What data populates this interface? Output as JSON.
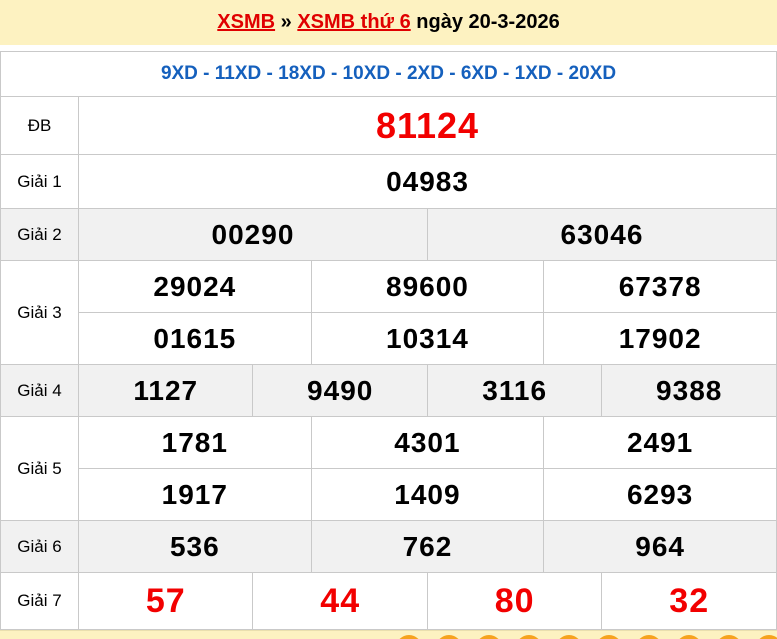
{
  "breadcrumb": {
    "link_xsmb": "XSMB",
    "separator": " » ",
    "link_day": "XSMB thứ 6",
    "date_text": " ngày 20-3-2026"
  },
  "subheader": {
    "text": "9XD - 11XD - 18XD - 10XD - 2XD - 6XD - 1XD - 20XD"
  },
  "results": {
    "rows": [
      {
        "label": "ĐB",
        "values": [
          "81124"
        ],
        "red": true,
        "shade": false
      },
      {
        "label": "Giải 1",
        "values": [
          "04983"
        ],
        "red": false,
        "shade": false
      },
      {
        "label": "Giải 2",
        "values": [
          "00290",
          "63046"
        ],
        "red": false,
        "shade": true
      },
      {
        "label": "Giải 3",
        "values": [
          "29024",
          "89600",
          "67378",
          "01615",
          "10314",
          "17902"
        ],
        "per_line": 3,
        "red": false,
        "shade": false
      },
      {
        "label": "Giải 4",
        "values": [
          "1127",
          "9490",
          "3116",
          "9388"
        ],
        "red": false,
        "shade": true
      },
      {
        "label": "Giải 5",
        "values": [
          "1781",
          "4301",
          "2491",
          "1917",
          "1409",
          "6293"
        ],
        "per_line": 3,
        "red": false,
        "shade": false
      },
      {
        "label": "Giải 6",
        "values": [
          "536",
          "762",
          "964"
        ],
        "red": false,
        "shade": true
      },
      {
        "label": "Giải 7",
        "values": [
          "57",
          "44",
          "80",
          "32"
        ],
        "red": true,
        "shade": false
      }
    ]
  },
  "footer": {
    "ball_count": 10
  },
  "colors": {
    "header_bg": "#fdf2c1",
    "link_red": "#e00000",
    "accent_red": "#f20000",
    "blue": "#1560bd",
    "shade": "#f1f1f1",
    "border": "#c9c9c9",
    "ball": "#f6a21e"
  }
}
